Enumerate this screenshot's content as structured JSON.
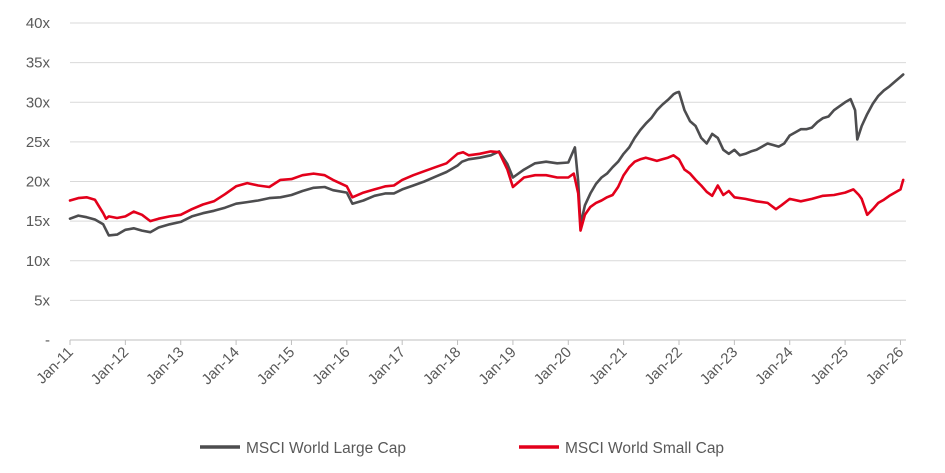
{
  "chart_data": {
    "type": "line",
    "xlabel": "",
    "ylabel": "",
    "ylim": [
      0,
      40
    ],
    "grid": true,
    "legend_position": "bottom",
    "y_ticks": [
      0,
      5,
      10,
      15,
      20,
      25,
      30,
      35,
      40
    ],
    "y_tick_labels": [
      "-",
      "5x",
      "10x",
      "15x",
      "20x",
      "25x",
      "30x",
      "35x",
      "40x"
    ],
    "x_ticks": [
      "Jan-11",
      "Jan-12",
      "Jan-13",
      "Jan-14",
      "Jan-15",
      "Jan-16",
      "Jan-17",
      "Jan-18",
      "Jan-19",
      "Jan-20",
      "Jan-21",
      "Jan-22",
      "Jan-23",
      "Jan-24",
      "Jan-25",
      "Jan-26"
    ],
    "x_range": [
      2011.0,
      2026.1
    ],
    "series": [
      {
        "name": "MSCI World Large Cap",
        "color": "#4d4d4f",
        "x": [
          2011.0,
          2011.15,
          2011.3,
          2011.45,
          2011.6,
          2011.7,
          2011.85,
          2012.0,
          2012.15,
          2012.3,
          2012.45,
          2012.6,
          2012.8,
          2013.0,
          2013.2,
          2013.4,
          2013.6,
          2013.8,
          2014.0,
          2014.2,
          2014.4,
          2014.6,
          2014.8,
          2015.0,
          2015.2,
          2015.4,
          2015.6,
          2015.75,
          2016.0,
          2016.1,
          2016.3,
          2016.5,
          2016.7,
          2016.85,
          2017.0,
          2017.2,
          2017.4,
          2017.6,
          2017.8,
          2018.0,
          2018.08,
          2018.2,
          2018.4,
          2018.6,
          2018.75,
          2018.9,
          2019.0,
          2019.2,
          2019.4,
          2019.6,
          2019.8,
          2020.0,
          2020.12,
          2020.18,
          2020.22,
          2020.3,
          2020.4,
          2020.5,
          2020.6,
          2020.7,
          2020.8,
          2020.9,
          2021.0,
          2021.1,
          2021.2,
          2021.3,
          2021.4,
          2021.5,
          2021.6,
          2021.7,
          2021.8,
          2021.9,
          2021.95,
          2022.0,
          2022.1,
          2022.2,
          2022.3,
          2022.4,
          2022.5,
          2022.6,
          2022.7,
          2022.8,
          2022.9,
          2023.0,
          2023.1,
          2023.2,
          2023.3,
          2023.4,
          2023.5,
          2023.6,
          2023.7,
          2023.8,
          2023.9,
          2024.0,
          2024.1,
          2024.2,
          2024.3,
          2024.4,
          2024.5,
          2024.6,
          2024.7,
          2024.8,
          2024.9,
          2025.0,
          2025.1,
          2025.18,
          2025.22,
          2025.3,
          2025.4,
          2025.5,
          2025.6,
          2025.7,
          2025.8,
          2025.9,
          2026.0,
          2026.05
        ],
        "y": [
          15.3,
          15.7,
          15.5,
          15.2,
          14.6,
          13.2,
          13.3,
          13.9,
          14.1,
          13.8,
          13.6,
          14.2,
          14.6,
          14.9,
          15.6,
          16.0,
          16.3,
          16.7,
          17.2,
          17.4,
          17.6,
          17.9,
          18.0,
          18.3,
          18.8,
          19.2,
          19.3,
          18.9,
          18.6,
          17.2,
          17.6,
          18.2,
          18.5,
          18.5,
          19.0,
          19.5,
          20.0,
          20.6,
          21.2,
          22.0,
          22.5,
          22.8,
          23.0,
          23.3,
          23.8,
          22.2,
          20.5,
          21.5,
          22.3,
          22.5,
          22.3,
          22.4,
          24.3,
          20.0,
          14.5,
          17.0,
          18.5,
          19.7,
          20.5,
          21.0,
          21.8,
          22.5,
          23.5,
          24.3,
          25.5,
          26.5,
          27.3,
          28.0,
          29.0,
          29.7,
          30.3,
          31.0,
          31.2,
          31.3,
          29.0,
          27.6,
          27.0,
          25.5,
          24.8,
          26.0,
          25.5,
          24.0,
          23.5,
          24.0,
          23.3,
          23.5,
          23.8,
          24.0,
          24.4,
          24.8,
          24.6,
          24.4,
          24.8,
          25.8,
          26.2,
          26.6,
          26.6,
          26.8,
          27.5,
          28.0,
          28.2,
          29.0,
          29.5,
          30.0,
          30.4,
          29.0,
          25.3,
          27.0,
          28.5,
          29.8,
          30.8,
          31.5,
          32.0,
          32.6,
          33.2,
          33.5
        ]
      },
      {
        "name": "MSCI World Small Cap",
        "color": "#e3001b",
        "x": [
          2011.0,
          2011.15,
          2011.3,
          2011.45,
          2011.6,
          2011.65,
          2011.7,
          2011.85,
          2012.0,
          2012.15,
          2012.3,
          2012.45,
          2012.6,
          2012.8,
          2013.0,
          2013.2,
          2013.4,
          2013.6,
          2013.8,
          2014.0,
          2014.2,
          2014.4,
          2014.6,
          2014.8,
          2015.0,
          2015.2,
          2015.4,
          2015.6,
          2015.75,
          2016.0,
          2016.1,
          2016.3,
          2016.5,
          2016.7,
          2016.85,
          2017.0,
          2017.2,
          2017.4,
          2017.6,
          2017.8,
          2018.0,
          2018.1,
          2018.2,
          2018.4,
          2018.6,
          2018.75,
          2018.9,
          2019.0,
          2019.2,
          2019.4,
          2019.6,
          2019.8,
          2020.0,
          2020.1,
          2020.18,
          2020.22,
          2020.3,
          2020.4,
          2020.5,
          2020.6,
          2020.7,
          2020.8,
          2020.9,
          2021.0,
          2021.1,
          2021.2,
          2021.3,
          2021.4,
          2021.5,
          2021.6,
          2021.7,
          2021.8,
          2021.9,
          2022.0,
          2022.1,
          2022.2,
          2022.3,
          2022.4,
          2022.5,
          2022.6,
          2022.7,
          2022.8,
          2022.9,
          2023.0,
          2023.2,
          2023.4,
          2023.6,
          2023.75,
          2023.85,
          2024.0,
          2024.2,
          2024.4,
          2024.6,
          2024.8,
          2025.0,
          2025.15,
          2025.25,
          2025.3,
          2025.4,
          2025.5,
          2025.6,
          2025.7,
          2025.8,
          2025.9,
          2026.0,
          2026.05
        ],
        "y": [
          17.6,
          17.9,
          18.0,
          17.7,
          16.0,
          15.3,
          15.6,
          15.4,
          15.6,
          16.2,
          15.8,
          15.0,
          15.3,
          15.6,
          15.8,
          16.5,
          17.1,
          17.5,
          18.4,
          19.4,
          19.8,
          19.5,
          19.3,
          20.2,
          20.3,
          20.8,
          21.0,
          20.8,
          20.2,
          19.4,
          18.0,
          18.6,
          19.0,
          19.4,
          19.5,
          20.2,
          20.8,
          21.3,
          21.8,
          22.3,
          23.5,
          23.7,
          23.3,
          23.5,
          23.8,
          23.7,
          21.5,
          19.3,
          20.5,
          20.8,
          20.8,
          20.5,
          20.5,
          21.0,
          18.5,
          13.8,
          15.8,
          16.8,
          17.3,
          17.6,
          18.0,
          18.3,
          19.3,
          20.8,
          21.8,
          22.5,
          22.8,
          23.0,
          22.8,
          22.6,
          22.8,
          23.0,
          23.3,
          22.8,
          21.5,
          21.0,
          20.2,
          19.5,
          18.7,
          18.2,
          19.5,
          18.3,
          18.8,
          18.0,
          17.8,
          17.5,
          17.3,
          16.5,
          17.0,
          17.8,
          17.5,
          17.8,
          18.2,
          18.3,
          18.6,
          19.0,
          18.3,
          17.8,
          15.8,
          16.5,
          17.3,
          17.7,
          18.2,
          18.6,
          19.0,
          20.2
        ]
      }
    ]
  }
}
